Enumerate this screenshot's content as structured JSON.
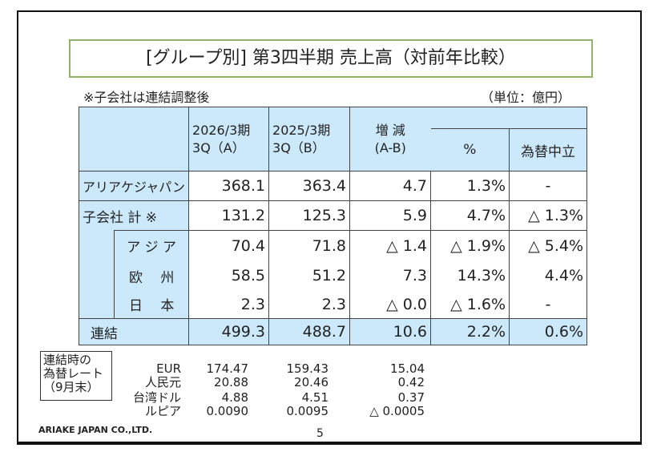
{
  "title": "[グループ別] 第3四半期  売上高（対前年比較）",
  "note": "※子会社は連結調整後",
  "unit": "（単位：億円）",
  "header": {
    "a_line1": "2026/3期",
    "a_line2": "3Q（A）",
    "b_line1": "2025/3期",
    "b_line2": "3Q（B）",
    "diff_line1": "増 減",
    "diff_line2": "(A-B)",
    "pct": "%",
    "fx_neutral": "為替中立"
  },
  "rows": [
    {
      "label": "アリアケジャパン",
      "a": "368.1",
      "b": "363.4",
      "diff": "4.7",
      "pct": "1.3%",
      "fx": "-"
    },
    {
      "label": "子会社 計 ※",
      "a": "131.2",
      "b": "125.3",
      "diff": "5.9",
      "pct": "4.7%",
      "fx": "△ 1.3%"
    },
    {
      "label": "ア ジ ア",
      "a": "70.4",
      "b": "71.8",
      "diff": "△ 1.4",
      "pct": "△ 1.9%",
      "fx": "△ 5.4%"
    },
    {
      "label": "欧　 州",
      "a": "58.5",
      "b": "51.2",
      "diff": "7.3",
      "pct": "14.3%",
      "fx": "4.4%"
    },
    {
      "label": "日　 本",
      "a": "2.3",
      "b": "2.3",
      "diff": "△ 0.0",
      "pct": "△ 1.6%",
      "fx": "-"
    },
    {
      "label": "連結",
      "a": "499.3",
      "b": "488.7",
      "diff": "10.6",
      "pct": "2.2%",
      "fx": "0.6%"
    }
  ],
  "rates": {
    "box": [
      "連結時の",
      "為替レート",
      "（9月末）"
    ],
    "currencies": [
      "EUR",
      "人民元",
      "台湾ドル",
      "ルピア"
    ],
    "a": [
      "174.47",
      "20.88",
      "4.88",
      "0.0090"
    ],
    "b": [
      "159.43",
      "20.46",
      "4.51",
      "0.0095"
    ],
    "diff": [
      "15.04",
      "0.42",
      "0.37",
      "△ 0.0005"
    ]
  },
  "footer": "ARIAKE JAPAN CO.,LTD.",
  "page_number": "5"
}
